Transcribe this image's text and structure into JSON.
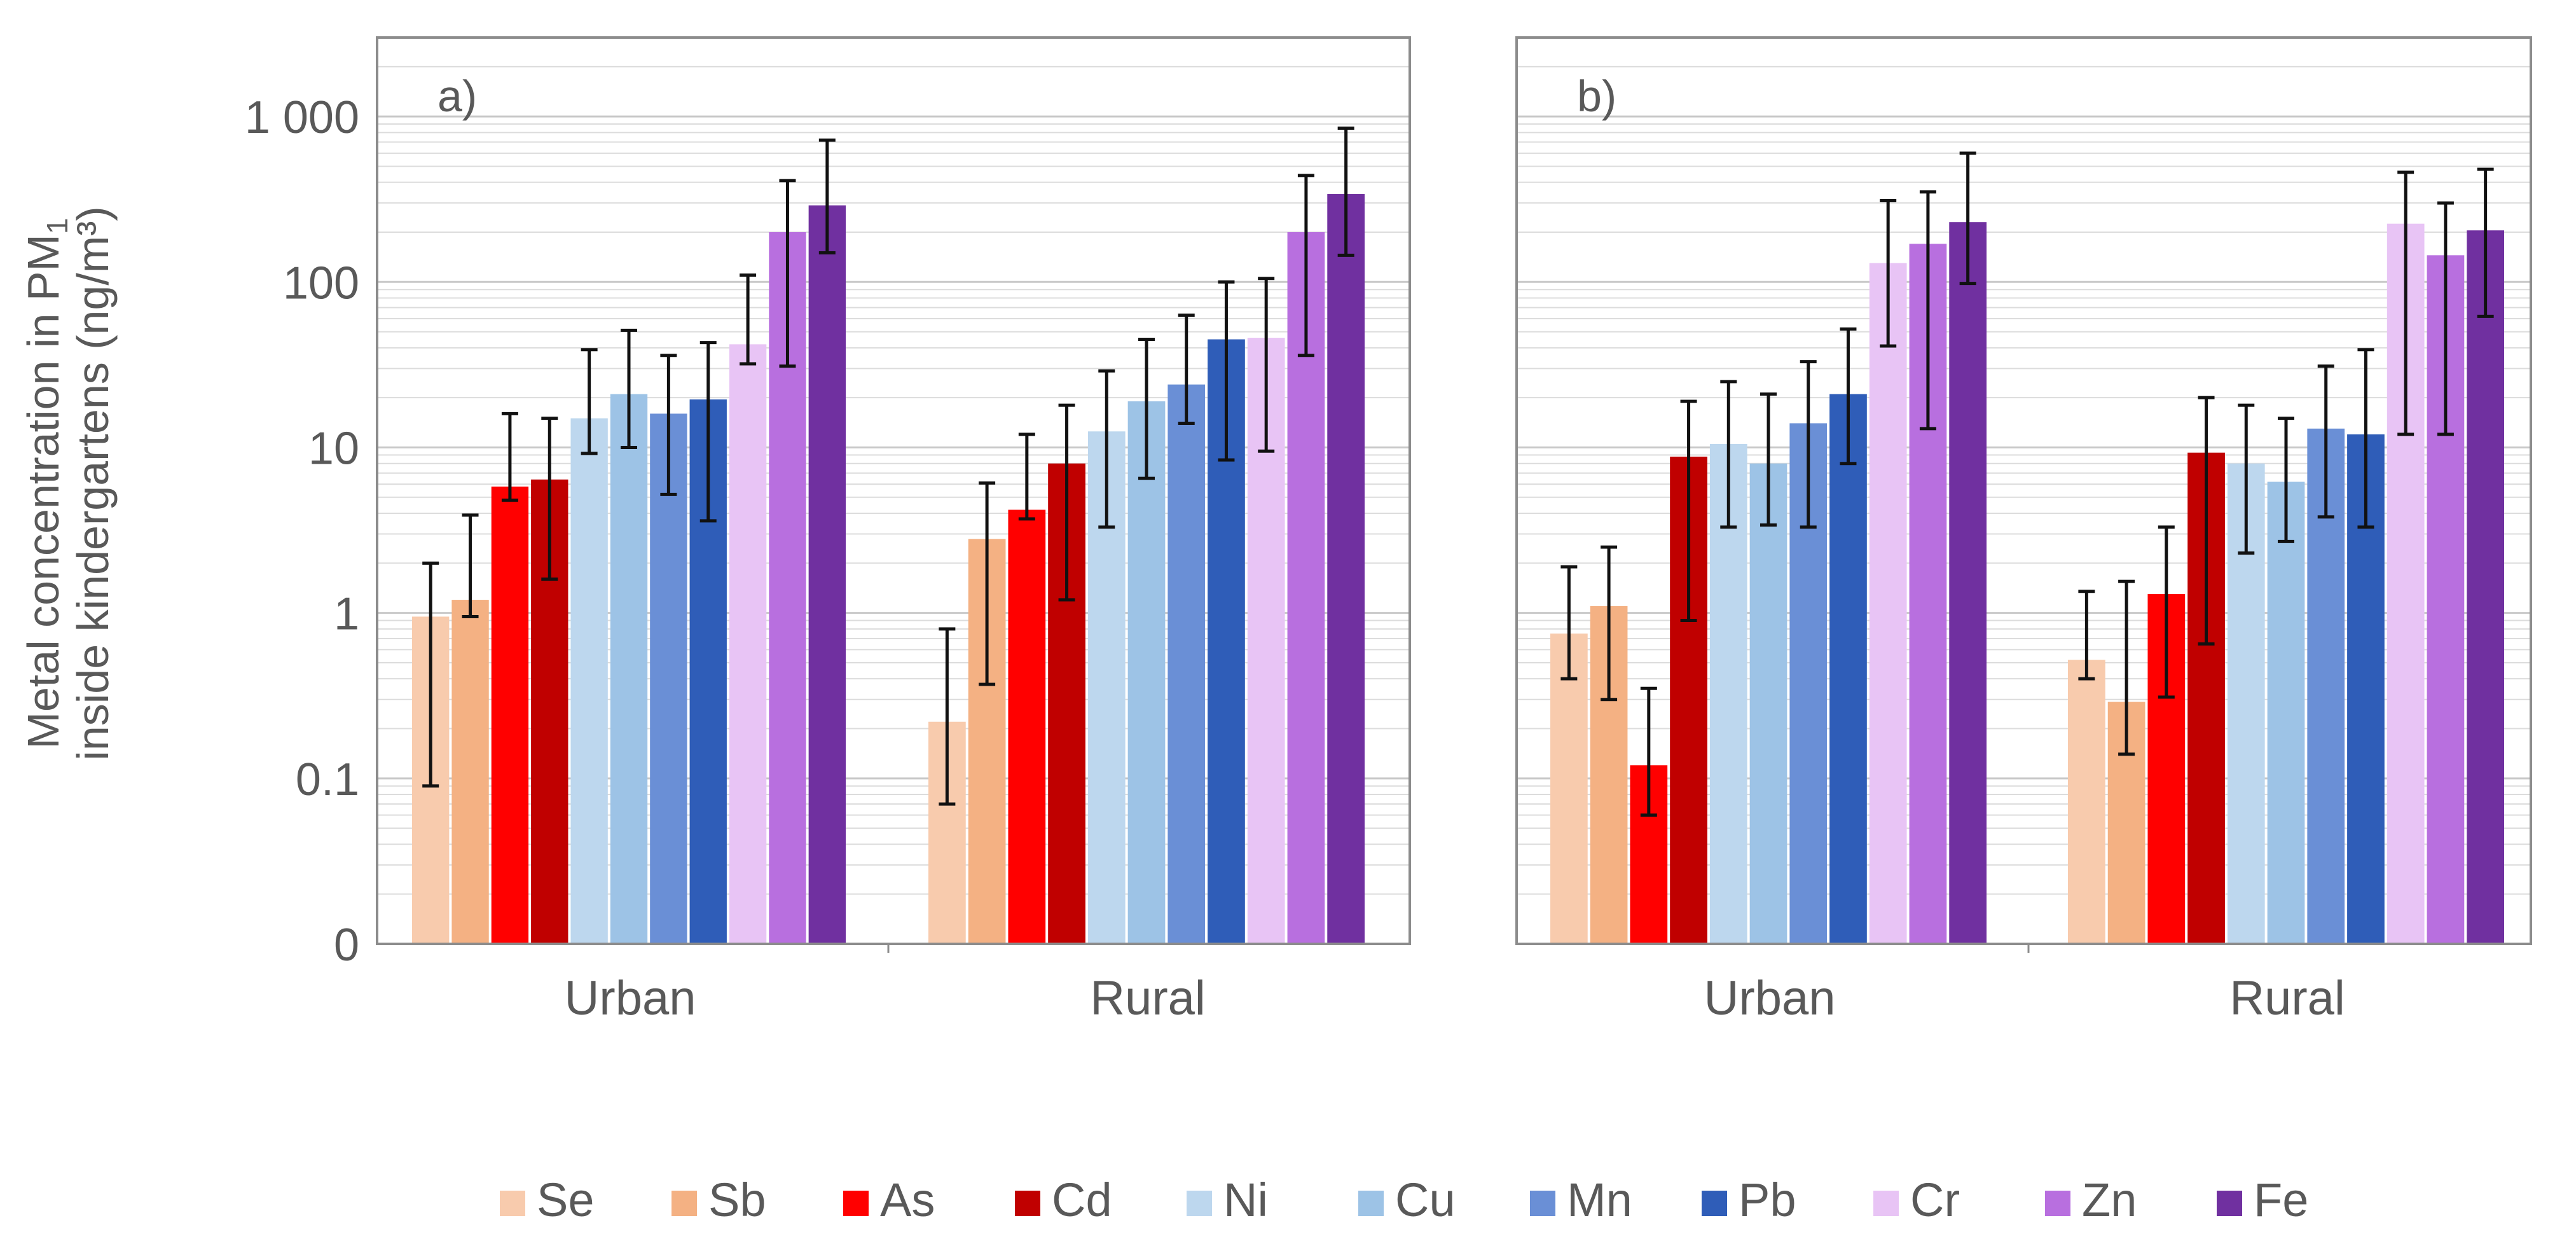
{
  "figure": {
    "ylabel_line1": "Metal concentration in PM",
    "ylabel_subscript": "1",
    "ylabel_line2": "inside kindergartens (ng/m³)"
  },
  "chart_data": [
    {
      "type": "bar",
      "panel_label": "a)",
      "title": "",
      "xlabel": "",
      "ylabel": "Metal concentration in PM1 inside kindergartens (ng/m³)",
      "yscale": "log",
      "ylim": [
        0.01,
        3000
      ],
      "ytick_values": [
        0.01,
        0.1,
        1,
        10,
        100,
        1000
      ],
      "ytick_labels": [
        "0",
        "0.1",
        "1",
        "10",
        "100",
        "1 000"
      ],
      "grid": true,
      "legend_position": "bottom",
      "categories": [
        "Urban",
        "Rural"
      ],
      "series": [
        {
          "name": "Se",
          "color": "#F8CBAD",
          "values": [
            0.95,
            0.22
          ],
          "err_low": [
            0.09,
            0.07
          ],
          "err_high": [
            2.0,
            0.8
          ]
        },
        {
          "name": "Sb",
          "color": "#F4B183",
          "values": [
            1.2,
            2.8
          ],
          "err_low": [
            0.95,
            0.37
          ],
          "err_high": [
            3.9,
            6.1
          ]
        },
        {
          "name": "As",
          "color": "#FF0000",
          "values": [
            5.8,
            4.2
          ],
          "err_low": [
            4.8,
            3.7
          ],
          "err_high": [
            16,
            12
          ]
        },
        {
          "name": "Cd",
          "color": "#C00000",
          "values": [
            6.4,
            8.0
          ],
          "err_low": [
            1.6,
            1.2
          ],
          "err_high": [
            15,
            18
          ]
        },
        {
          "name": "Ni",
          "color": "#BDD7EE",
          "values": [
            15,
            12.5
          ],
          "err_low": [
            9.2,
            3.3
          ],
          "err_high": [
            39,
            29
          ]
        },
        {
          "name": "Cu",
          "color": "#9DC3E6",
          "values": [
            21,
            19
          ],
          "err_low": [
            10,
            6.5
          ],
          "err_high": [
            51,
            45
          ]
        },
        {
          "name": "Mn",
          "color": "#6A8FD6",
          "values": [
            16,
            24
          ],
          "err_low": [
            5.2,
            14
          ],
          "err_high": [
            36,
            63
          ]
        },
        {
          "name": "Pb",
          "color": "#2F5DB8",
          "values": [
            19.5,
            45
          ],
          "err_low": [
            3.6,
            8.4
          ],
          "err_high": [
            43,
            100
          ]
        },
        {
          "name": "Cr",
          "color": "#E8C4F5",
          "values": [
            42,
            46
          ],
          "err_low": [
            32,
            9.5
          ],
          "err_high": [
            110,
            105
          ]
        },
        {
          "name": "Zn",
          "color": "#B86FDF",
          "values": [
            200,
            200
          ],
          "err_low": [
            31,
            36
          ],
          "err_high": [
            410,
            440
          ]
        },
        {
          "name": "Fe",
          "color": "#7030A0",
          "values": [
            290,
            340
          ],
          "err_low": [
            150,
            145
          ],
          "err_high": [
            720,
            850
          ]
        }
      ]
    },
    {
      "type": "bar",
      "panel_label": "b)",
      "title": "",
      "xlabel": "",
      "ylabel": "",
      "yscale": "log",
      "ylim": [
        0.01,
        3000
      ],
      "grid": true,
      "legend_position": "bottom",
      "categories": [
        "Urban",
        "Rural"
      ],
      "series": [
        {
          "name": "Se",
          "color": "#F8CBAD",
          "values": [
            0.75,
            0.52
          ],
          "err_low": [
            0.4,
            0.4
          ],
          "err_high": [
            1.9,
            1.35
          ]
        },
        {
          "name": "Sb",
          "color": "#F4B183",
          "values": [
            1.1,
            0.29
          ],
          "err_low": [
            0.3,
            0.14
          ],
          "err_high": [
            2.5,
            1.55
          ]
        },
        {
          "name": "As",
          "color": "#FF0000",
          "values": [
            0.12,
            1.3
          ],
          "err_low": [
            0.06,
            0.31
          ],
          "err_high": [
            0.35,
            3.3
          ]
        },
        {
          "name": "Cd",
          "color": "#C00000",
          "values": [
            8.8,
            9.3
          ],
          "err_low": [
            0.9,
            0.65
          ],
          "err_high": [
            19,
            20
          ]
        },
        {
          "name": "Ni",
          "color": "#BDD7EE",
          "values": [
            10.5,
            8.0
          ],
          "err_low": [
            3.3,
            2.3
          ],
          "err_high": [
            25,
            18
          ]
        },
        {
          "name": "Cu",
          "color": "#9DC3E6",
          "values": [
            8.0,
            6.2
          ],
          "err_low": [
            3.4,
            2.7
          ],
          "err_high": [
            21,
            15
          ]
        },
        {
          "name": "Mn",
          "color": "#6A8FD6",
          "values": [
            14,
            13
          ],
          "err_low": [
            3.3,
            3.8
          ],
          "err_high": [
            33,
            31
          ]
        },
        {
          "name": "Pb",
          "color": "#2F5DB8",
          "values": [
            21,
            12
          ],
          "err_low": [
            8.0,
            3.3
          ],
          "err_high": [
            52,
            39
          ]
        },
        {
          "name": "Cr",
          "color": "#E8C4F5",
          "values": [
            130,
            225
          ],
          "err_low": [
            41,
            12
          ],
          "err_high": [
            310,
            460
          ]
        },
        {
          "name": "Zn",
          "color": "#B86FDF",
          "values": [
            170,
            145
          ],
          "err_low": [
            13,
            12
          ],
          "err_high": [
            350,
            300
          ]
        },
        {
          "name": "Fe",
          "color": "#7030A0",
          "values": [
            230,
            205
          ],
          "err_low": [
            98,
            62
          ],
          "err_high": [
            600,
            480
          ]
        }
      ]
    }
  ]
}
